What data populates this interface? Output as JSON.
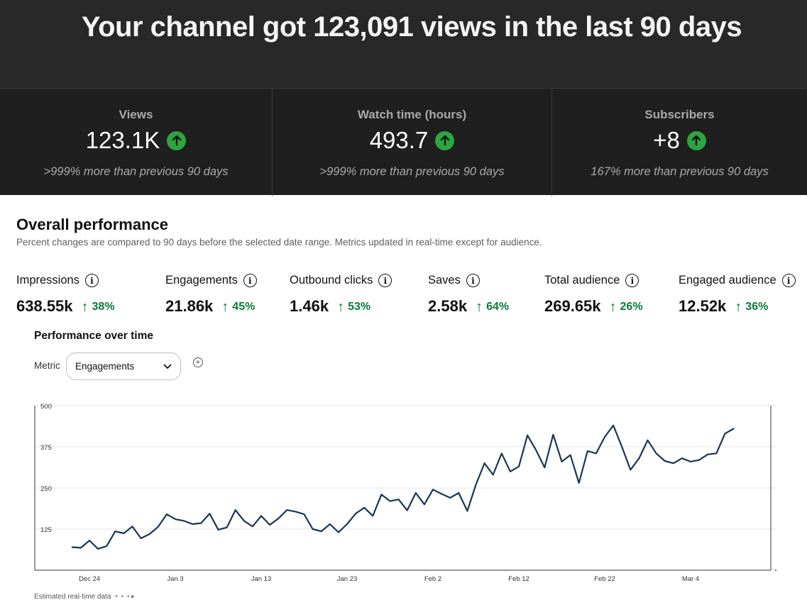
{
  "header": {
    "headline": "Your channel got 123,091 views in the last 90 days"
  },
  "stats": [
    {
      "title": "Views",
      "value": "123.1K",
      "note": ">999% more than previous 90 days"
    },
    {
      "title": "Watch time (hours)",
      "value": "493.7",
      "note": ">999% more than previous 90 days"
    },
    {
      "title": "Subscribers",
      "value": "+8",
      "note": "167% more than previous 90 days"
    }
  ],
  "overall": {
    "title": "Overall performance",
    "subtitle": "Percent changes are compared to 90 days before the selected date range. Metrics updated in real-time except for audience."
  },
  "metrics": [
    {
      "label": "Impressions",
      "value": "638.55k",
      "change": "38%"
    },
    {
      "label": "Engagements",
      "value": "21.86k",
      "change": "45%"
    },
    {
      "label": "Outbound clicks",
      "value": "1.46k",
      "change": "53%"
    },
    {
      "label": "Saves",
      "value": "2.58k",
      "change": "64%"
    },
    {
      "label": "Total audience",
      "value": "269.65k",
      "change": "26%"
    },
    {
      "label": "Engaged audience",
      "value": "12.52k",
      "change": "36%"
    }
  ],
  "performance": {
    "title": "Performance over time",
    "metric_label": "Metric",
    "selected_metric": "Engagements",
    "legend_label": "Estimated real-time data"
  },
  "colors": {
    "dark_bg": "#282828",
    "stat_bg": "#1f1f1f",
    "up_green": "#2ba640",
    "change_green": "#0a7a3a",
    "line": "#1b3556"
  },
  "chart_data": {
    "type": "line",
    "ylim": [
      0,
      500
    ],
    "yticks": [
      125,
      250,
      375,
      500
    ],
    "xtick_labels": [
      "Dec 24",
      "Jan 3",
      "Jan 13",
      "Jan 23",
      "Feb 2",
      "Feb 12",
      "Feb 22",
      "Mar 4"
    ],
    "first_tick_index": 2,
    "tick_step": 10,
    "series": [
      {
        "values": [
          70,
          68,
          90,
          65,
          73,
          118,
          112,
          133,
          97,
          110,
          132,
          170,
          155,
          150,
          140,
          143,
          172,
          123,
          130,
          183,
          150,
          133,
          165,
          138,
          157,
          183,
          178,
          170,
          125,
          118,
          140,
          115,
          140,
          172,
          190,
          165,
          230,
          210,
          215,
          182,
          235,
          200,
          245,
          232,
          220,
          235,
          180,
          260,
          325,
          290,
          355,
          300,
          315,
          410,
          365,
          312,
          412,
          330,
          350,
          265,
          362,
          355,
          405,
          440,
          375,
          305,
          340,
          395,
          355,
          332,
          325,
          340,
          330,
          335,
          352,
          355,
          415,
          430
        ]
      }
    ]
  }
}
